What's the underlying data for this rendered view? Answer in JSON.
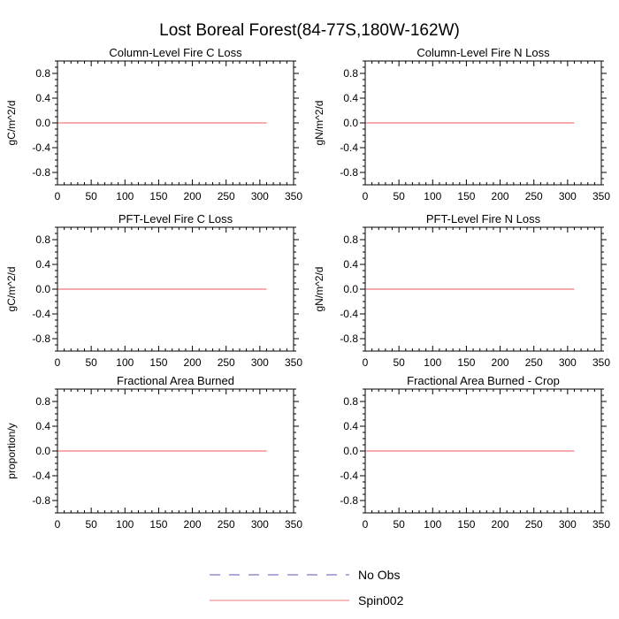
{
  "title": "Lost Boreal Forest(84-77S,180W-162W)",
  "legend": [
    {
      "name": "No Obs",
      "color": "#5a55b0",
      "dash": true
    },
    {
      "name": "Spin002",
      "color": "#f07a7a",
      "dash": false
    }
  ],
  "chart_data": [
    {
      "type": "line",
      "title": "Column-Level Fire C Loss",
      "ylabel": "gC/m^2/d",
      "xlim": [
        0,
        350
      ],
      "ylim": [
        -1,
        1
      ],
      "xticks": [
        0,
        50,
        100,
        150,
        200,
        250,
        300,
        350
      ],
      "yticks": [
        0.8,
        0.4,
        0.0,
        -0.4,
        -0.8
      ],
      "ytick_labels": [
        "0.8",
        "0.4",
        "0.0",
        "-0.4",
        "-0.8"
      ],
      "series": [
        {
          "name": "Spin002",
          "x": [
            1,
            310
          ],
          "y": [
            0,
            0
          ]
        }
      ]
    },
    {
      "type": "line",
      "title": "Column-Level Fire N Loss",
      "ylabel": "gN/m^2/d",
      "xlim": [
        0,
        350
      ],
      "ylim": [
        -1,
        1
      ],
      "xticks": [
        0,
        50,
        100,
        150,
        200,
        250,
        300,
        350
      ],
      "yticks": [
        0.8,
        0.4,
        0.0,
        -0.4,
        -0.8
      ],
      "ytick_labels": [
        "0.8",
        "0.4",
        "0.0",
        "-0.4",
        "-0.8"
      ],
      "series": [
        {
          "name": "Spin002",
          "x": [
            1,
            310
          ],
          "y": [
            0,
            0
          ]
        }
      ]
    },
    {
      "type": "line",
      "title": "PFT-Level Fire C Loss",
      "ylabel": "gC/m^2/d",
      "xlim": [
        0,
        350
      ],
      "ylim": [
        -1,
        1
      ],
      "xticks": [
        0,
        50,
        100,
        150,
        200,
        250,
        300,
        350
      ],
      "yticks": [
        0.8,
        0.4,
        0.0,
        -0.4,
        -0.8
      ],
      "ytick_labels": [
        "0.8",
        "0.4",
        "0.0",
        "-0.4",
        "-0.8"
      ],
      "series": [
        {
          "name": "Spin002",
          "x": [
            1,
            310
          ],
          "y": [
            0,
            0
          ]
        }
      ]
    },
    {
      "type": "line",
      "title": "PFT-Level Fire N Loss",
      "ylabel": "gN/m^2/d",
      "xlim": [
        0,
        350
      ],
      "ylim": [
        -1,
        1
      ],
      "xticks": [
        0,
        50,
        100,
        150,
        200,
        250,
        300,
        350
      ],
      "yticks": [
        0.8,
        0.4,
        0.0,
        -0.4,
        -0.8
      ],
      "ytick_labels": [
        "0.8",
        "0.4",
        "0.0",
        "-0.4",
        "-0.8"
      ],
      "series": [
        {
          "name": "Spin002",
          "x": [
            1,
            310
          ],
          "y": [
            0,
            0
          ]
        }
      ]
    },
    {
      "type": "line",
      "title": "Fractional Area Burned",
      "ylabel": "proportion/y",
      "xlim": [
        0,
        350
      ],
      "ylim": [
        -1,
        1
      ],
      "xticks": [
        0,
        50,
        100,
        150,
        200,
        250,
        300,
        350
      ],
      "yticks": [
        0.8,
        0.4,
        0.0,
        -0.4,
        -0.8
      ],
      "ytick_labels": [
        "0.8",
        "0.4",
        "0.0",
        "-0.4",
        "-0.8"
      ],
      "series": [
        {
          "name": "Spin002",
          "x": [
            1,
            310
          ],
          "y": [
            0,
            0
          ]
        }
      ]
    },
    {
      "type": "line",
      "title": "Fractional Area Burned - Crop",
      "ylabel": "",
      "xlim": [
        0,
        350
      ],
      "ylim": [
        -1,
        1
      ],
      "xticks": [
        0,
        50,
        100,
        150,
        200,
        250,
        300,
        350
      ],
      "yticks": [
        0.8,
        0.4,
        0.0,
        -0.4,
        -0.8
      ],
      "ytick_labels": [
        "0.8",
        "0.4",
        "0.0",
        "-0.4",
        "-0.8"
      ],
      "series": [
        {
          "name": "Spin002",
          "x": [
            1,
            310
          ],
          "y": [
            0,
            0
          ]
        }
      ]
    }
  ]
}
